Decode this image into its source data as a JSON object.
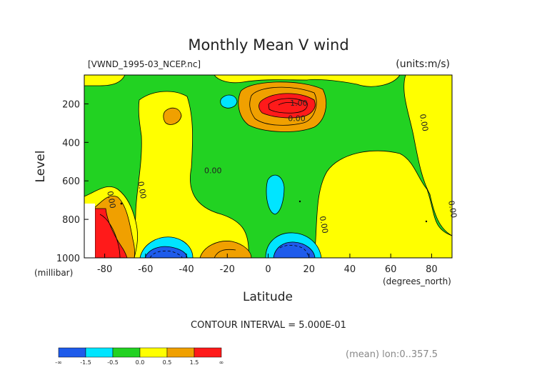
{
  "chart_data": {
    "type": "heatmap",
    "title": "Monthly Mean V wind",
    "file_label": "[VWND_1995-03_NCEP.nc]",
    "units_label": "(units:m/s)",
    "xlabel": "Latitude",
    "ylabel": "Level",
    "x_unit_label": "(degrees_north)",
    "y_unit_label": "(millibar)",
    "xlim": [
      -90,
      90
    ],
    "ylim": [
      1000,
      50
    ],
    "y_inverted": true,
    "x_ticks": [
      -80,
      -60,
      -40,
      -20,
      0,
      20,
      40,
      60,
      80
    ],
    "y_ticks": [
      200,
      400,
      600,
      800,
      1000
    ],
    "contour_interval_text": "CONTOUR INTERVAL = 5.000E-01",
    "footer_text": "(mean) lon:0..357.5",
    "contour_labels": [
      {
        "text": "1.00",
        "x": 15,
        "y": 210
      },
      {
        "text": "0.00",
        "x": 14,
        "y": 290
      },
      {
        "text": "0.00",
        "x": -27,
        "y": 560
      },
      {
        "text": "0.00",
        "x": -78,
        "y": 700
      },
      {
        "text": "0.00",
        "x": -63,
        "y": 650
      },
      {
        "text": "0.00",
        "x": 26,
        "y": 830
      },
      {
        "text": "0.00",
        "x": 75,
        "y": 300
      },
      {
        "text": "0.00",
        "x": 89,
        "y": 750
      }
    ],
    "colorbar": {
      "colors": [
        "#1E5BEB",
        "#00E5FF",
        "#22D222",
        "#FFFF00",
        "#F0A000",
        "#FF1A1A"
      ],
      "labels": [
        "-∞",
        "-1.5",
        "-0.5",
        "0.0",
        "0.5",
        "1.5",
        "∞"
      ]
    },
    "regions": [
      {
        "name": "background",
        "color": "#22D222"
      },
      {
        "name": "yellow-sh-broad",
        "color": "#FFFF00"
      },
      {
        "name": "yellow-nh-broad",
        "color": "#FFFF00"
      },
      {
        "name": "yellow-upper-right",
        "color": "#FFFF00"
      },
      {
        "name": "yellow-upper-left",
        "color": "#FFFF00"
      },
      {
        "name": "yellow-top-band",
        "color": "#FFFF00"
      },
      {
        "name": "orange-upper-core",
        "color": "#F0A000"
      },
      {
        "name": "red-upper-core",
        "color": "#FF1A1A"
      },
      {
        "name": "cyan-upper",
        "color": "#00E5FF"
      },
      {
        "name": "orange-small-200",
        "color": "#F0A000"
      },
      {
        "name": "cyan-mid",
        "color": "#00E5FF"
      },
      {
        "name": "yellow-left-edge",
        "color": "#FFFF00"
      },
      {
        "name": "orange-left-low",
        "color": "#F0A000"
      },
      {
        "name": "red-left-low",
        "color": "#FF1A1A"
      },
      {
        "name": "cyan-low-sh",
        "color": "#00E5FF"
      },
      {
        "name": "blue-low-sh",
        "color": "#1E5BEB"
      },
      {
        "name": "orange-low-sh",
        "color": "#F0A000"
      },
      {
        "name": "cyan-low-eq",
        "color": "#00E5FF"
      },
      {
        "name": "blue-low-eq",
        "color": "#1E5BEB"
      },
      {
        "name": "white-missing-corner",
        "color": "#FFFFFF"
      }
    ]
  }
}
